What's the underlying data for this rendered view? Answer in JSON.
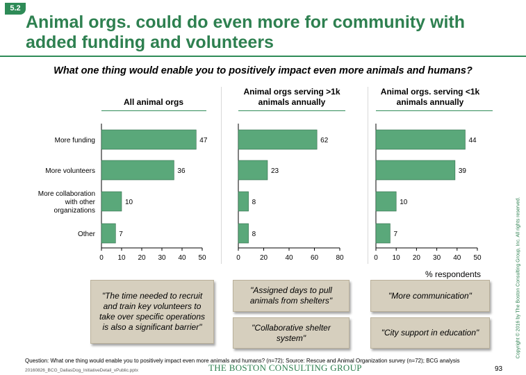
{
  "badge": "5.2",
  "title": "Animal orgs. could do even more for community with added funding and volunteers",
  "question": "What one thing would enable you to positively impact even more animals and humans?",
  "chart_data": [
    {
      "type": "bar",
      "orientation": "horizontal",
      "title": "All animal orgs",
      "categories": [
        "More funding",
        "More volunteers",
        "More collaboration with other organizations",
        "Other"
      ],
      "values": [
        47,
        36,
        10,
        7
      ],
      "xlim": [
        0,
        50
      ],
      "xticks": [
        0,
        10,
        20,
        30,
        40,
        50
      ],
      "color": "#5aa87a"
    },
    {
      "type": "bar",
      "orientation": "horizontal",
      "title": "Animal orgs serving >1k animals annually",
      "categories": [
        "More funding",
        "More volunteers",
        "More collaboration with other organizations",
        "Other"
      ],
      "values": [
        62,
        23,
        8,
        8
      ],
      "xlim": [
        0,
        80
      ],
      "xticks": [
        0,
        20,
        40,
        60,
        80
      ],
      "color": "#5aa87a"
    },
    {
      "type": "bar",
      "orientation": "horizontal",
      "title": "Animal orgs. serving <1k animals annually",
      "categories": [
        "More funding",
        "More volunteers",
        "More collaboration with other organizations",
        "Other"
      ],
      "values": [
        44,
        39,
        10,
        7
      ],
      "xlim": [
        0,
        50
      ],
      "xticks": [
        0,
        10,
        20,
        30,
        40,
        50
      ],
      "xlabel": "% respondents",
      "color": "#5aa87a"
    }
  ],
  "category_labels": [
    [
      "More funding"
    ],
    [
      "More volunteers"
    ],
    [
      "More collaboration",
      "with other",
      "organizations"
    ],
    [
      "Other"
    ]
  ],
  "panel_heads": [
    [
      "All animal orgs"
    ],
    [
      "Animal orgs serving >1k",
      "animals annually"
    ],
    [
      "Animal orgs. serving <1k",
      "animals annually"
    ]
  ],
  "quotes": {
    "q1": "\"The time needed to recruit and train key volunteers to take over specific operations is also a significant barrier\"",
    "q2": "\"Assigned days to pull animals from shelters\"",
    "q3": "\"Collaborative shelter system\"",
    "q4": "\"More communication\"",
    "q5": "\"City support in education\""
  },
  "footer": {
    "question": "Question: What one thing would enable you to positively impact even more animals and humans? (n=72); Source: Rescue and Animal Organization survey (n=72); BCG analysis",
    "file": "20160826_BCG_DallasDog_InitiativeDetail_vPublic.pptx",
    "brand": "THE BOSTON CONSULTING GROUP",
    "page": "93",
    "copyright": "Copyright © 2016 by The Boston Consulting Group, Inc. All rights reserved."
  }
}
